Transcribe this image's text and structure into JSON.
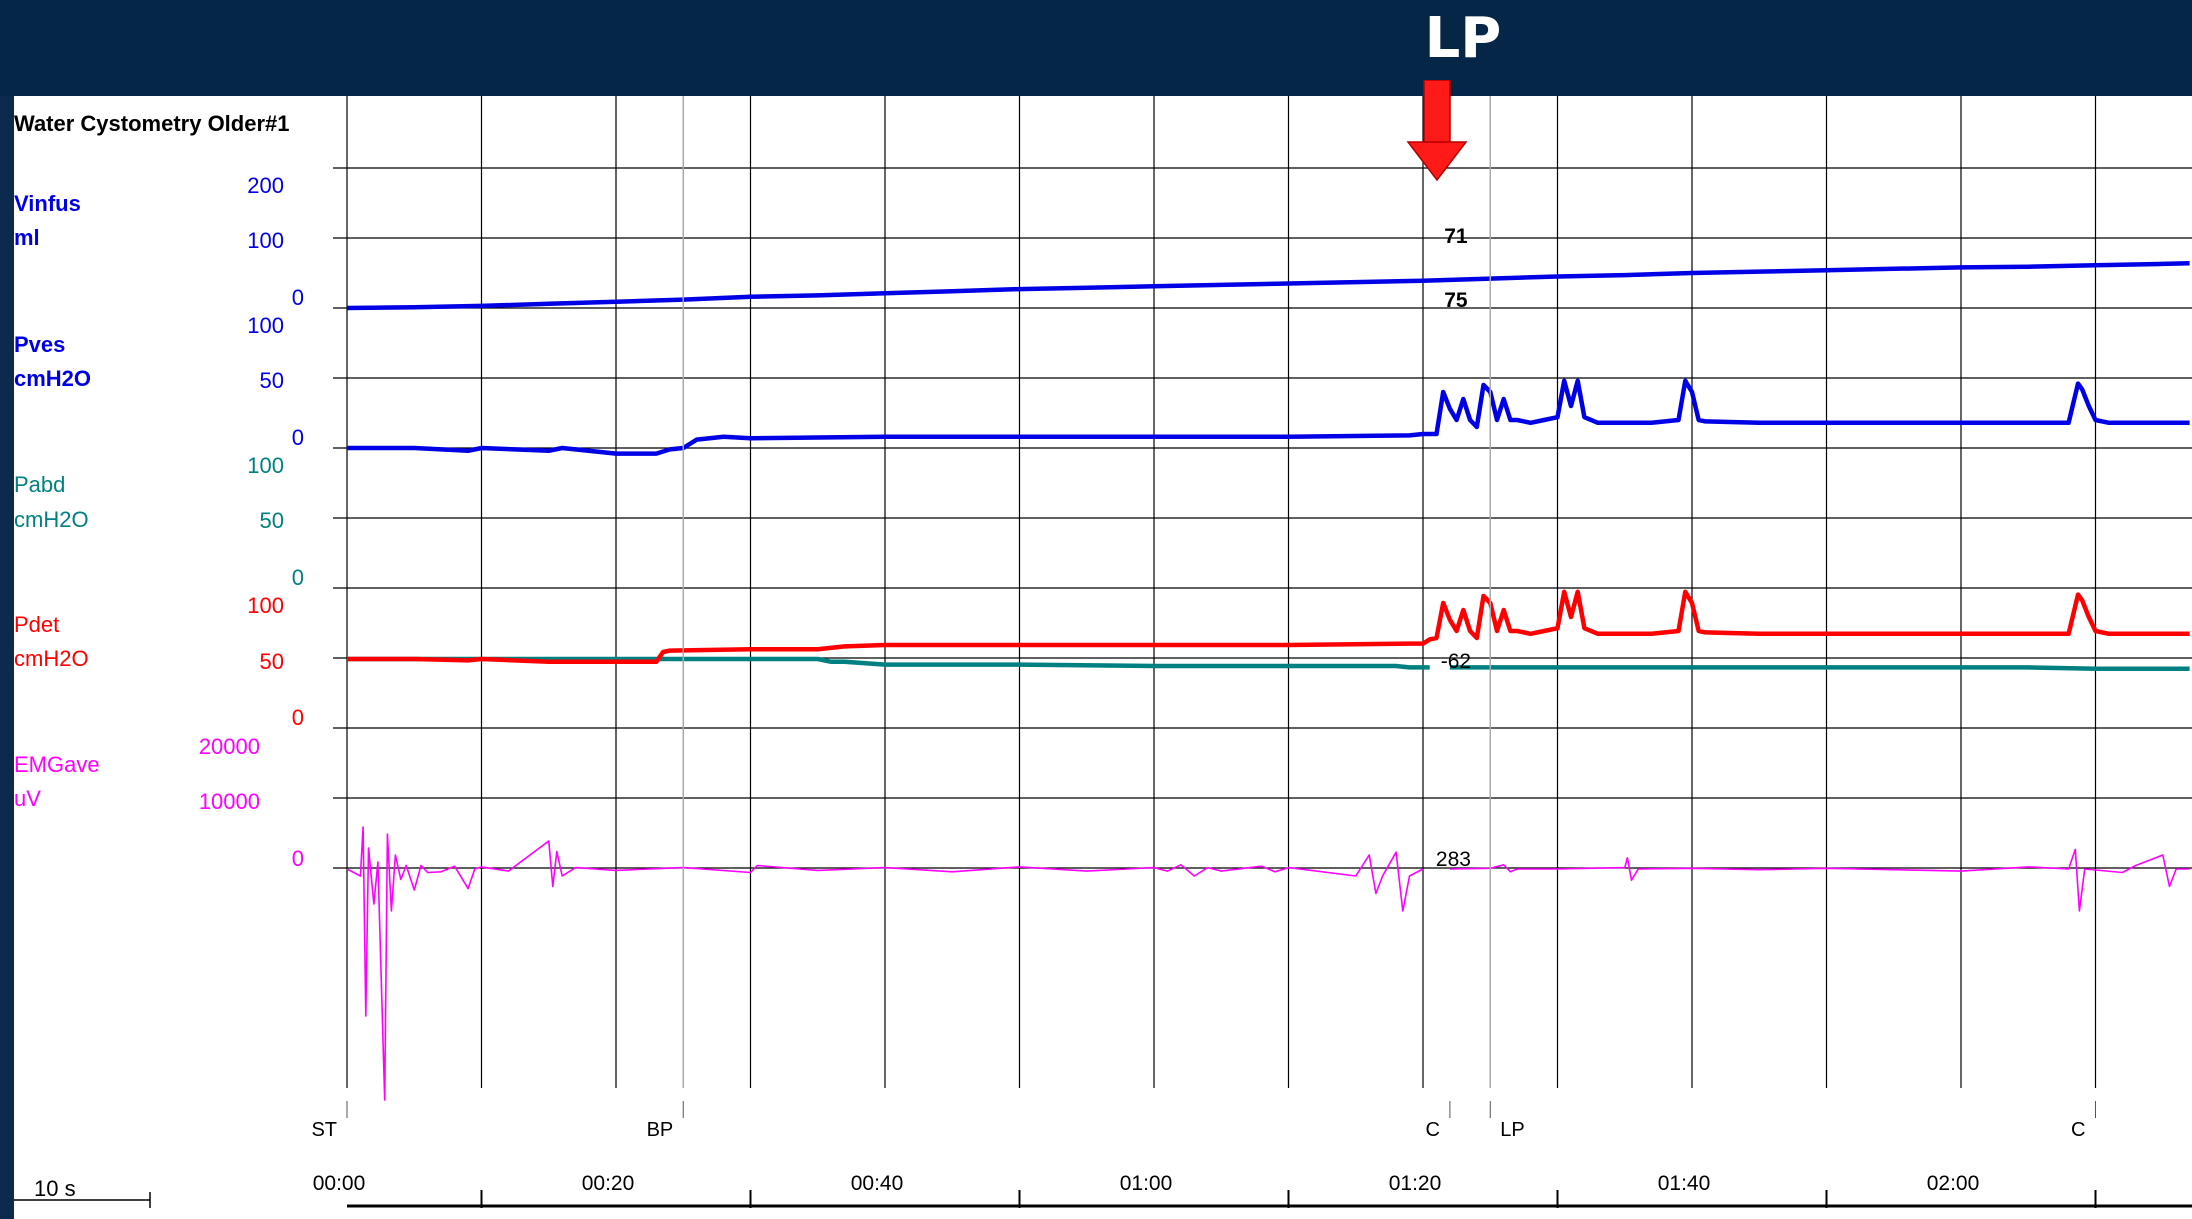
{
  "header": {
    "marker_title": "LP"
  },
  "chart_data": {
    "type": "line",
    "title": "Water Cystometry Older#1",
    "channels": [
      {
        "key": "vinfus",
        "name": "Vinfus",
        "unit": "ml",
        "color": "#0000e6",
        "ticks": [
          "200",
          "100",
          "0"
        ],
        "range": [
          0,
          200
        ]
      },
      {
        "key": "pves",
        "name": "Pves",
        "unit": "cmH2O",
        "color": "#0000e6",
        "ticks": [
          "100",
          "50",
          "0"
        ],
        "range": [
          0,
          100
        ]
      },
      {
        "key": "pabd",
        "name": "Pabd",
        "unit": "cmH2O",
        "color": "#008080",
        "ticks": [
          "100",
          "50",
          "0"
        ],
        "range": [
          0,
          100
        ]
      },
      {
        "key": "pdet",
        "name": "Pdet",
        "unit": "cmH2O",
        "color": "#ff0000",
        "ticks": [
          "100",
          "50",
          "0"
        ],
        "range": [
          0,
          100
        ]
      },
      {
        "key": "emg",
        "name": "EMGave",
        "unit": "uV",
        "color": "#ff00ff",
        "ticks": [
          "20000",
          "10000",
          "0"
        ],
        "range": [
          0,
          20000
        ]
      }
    ],
    "x_ticks": [
      "00:00",
      "00:20",
      "00:40",
      "01:00",
      "01:20",
      "01:40",
      "02:00"
    ],
    "x_range_s": [
      0,
      137
    ],
    "scale_bar": "10 s",
    "event_markers": [
      {
        "t": 0,
        "label": "ST"
      },
      {
        "t": 25,
        "label": "BP"
      },
      {
        "t": 82,
        "label": "C"
      },
      {
        "t": 85,
        "label": "LP"
      },
      {
        "t": 130,
        "label": "C"
      }
    ],
    "cursor_values": [
      {
        "channel": "vinfus",
        "text": "71"
      },
      {
        "channel": "pves",
        "text": "75"
      },
      {
        "channel": "pabd",
        "text": "-62"
      },
      {
        "channel": "emg",
        "text": "283"
      }
    ],
    "series": [
      {
        "name": "Vinfus",
        "points": [
          [
            0,
            0
          ],
          [
            5,
            1
          ],
          [
            10,
            3
          ],
          [
            15,
            6
          ],
          [
            20,
            9
          ],
          [
            25,
            12
          ],
          [
            30,
            16
          ],
          [
            35,
            18
          ],
          [
            40,
            21
          ],
          [
            45,
            24
          ],
          [
            50,
            27
          ],
          [
            55,
            29
          ],
          [
            60,
            31
          ],
          [
            65,
            33
          ],
          [
            70,
            35
          ],
          [
            75,
            37
          ],
          [
            80,
            39
          ],
          [
            85,
            42
          ],
          [
            90,
            45
          ],
          [
            95,
            47
          ],
          [
            100,
            50
          ],
          [
            105,
            52
          ],
          [
            110,
            54
          ],
          [
            115,
            56
          ],
          [
            120,
            58
          ],
          [
            125,
            59
          ],
          [
            130,
            61
          ],
          [
            135,
            63
          ],
          [
            137,
            64
          ]
        ]
      },
      {
        "name": "Pves",
        "points": [
          [
            0,
            0
          ],
          [
            5,
            0
          ],
          [
            9,
            -2
          ],
          [
            10,
            0
          ],
          [
            15,
            -2
          ],
          [
            16,
            0
          ],
          [
            20,
            -4
          ],
          [
            23,
            -4
          ],
          [
            24,
            -1
          ],
          [
            25,
            0
          ],
          [
            26,
            6
          ],
          [
            28,
            8
          ],
          [
            30,
            7
          ],
          [
            40,
            8
          ],
          [
            50,
            8
          ],
          [
            60,
            8
          ],
          [
            70,
            8
          ],
          [
            79,
            9
          ],
          [
            80,
            10
          ],
          [
            81,
            10
          ],
          [
            81.5,
            40
          ],
          [
            82,
            28
          ],
          [
            82.5,
            20
          ],
          [
            83,
            35
          ],
          [
            83.5,
            20
          ],
          [
            84,
            15
          ],
          [
            84.5,
            45
          ],
          [
            85,
            40
          ],
          [
            85.5,
            20
          ],
          [
            86,
            35
          ],
          [
            86.5,
            20
          ],
          [
            87,
            20
          ],
          [
            88,
            18
          ],
          [
            89,
            20
          ],
          [
            90,
            22
          ],
          [
            90.5,
            48
          ],
          [
            91,
            30
          ],
          [
            91.5,
            48
          ],
          [
            92,
            22
          ],
          [
            93,
            18
          ],
          [
            95,
            18
          ],
          [
            97,
            18
          ],
          [
            98,
            19
          ],
          [
            99,
            20
          ],
          [
            99.5,
            48
          ],
          [
            100,
            40
          ],
          [
            100.5,
            20
          ],
          [
            101,
            19
          ],
          [
            105,
            18
          ],
          [
            110,
            18
          ],
          [
            115,
            18
          ],
          [
            120,
            18
          ],
          [
            125,
            18
          ],
          [
            128,
            18
          ],
          [
            128.7,
            46
          ],
          [
            129,
            42
          ],
          [
            129.5,
            30
          ],
          [
            130,
            20
          ],
          [
            131,
            18
          ],
          [
            135,
            18
          ],
          [
            137,
            18
          ]
        ]
      },
      {
        "name": "Pabd",
        "points": [
          [
            0,
            0
          ],
          [
            10,
            0
          ],
          [
            20,
            0
          ],
          [
            24,
            0
          ],
          [
            25,
            0
          ],
          [
            30,
            0
          ],
          [
            35,
            0
          ],
          [
            36,
            -2
          ],
          [
            37,
            -2
          ],
          [
            40,
            -4
          ],
          [
            50,
            -4
          ],
          [
            60,
            -5
          ],
          [
            70,
            -5
          ],
          [
            78,
            -5
          ],
          [
            79,
            -6
          ],
          [
            80.5,
            -6
          ],
          [
            null,
            null
          ],
          [
            82,
            -6
          ],
          [
            90,
            -6
          ],
          [
            100,
            -6
          ],
          [
            110,
            -6
          ],
          [
            120,
            -6
          ],
          [
            125,
            -6
          ],
          [
            130,
            -7
          ],
          [
            137,
            -7
          ]
        ]
      },
      {
        "name": "Pdet",
        "points": [
          [
            0,
            0
          ],
          [
            5,
            0
          ],
          [
            9,
            -1
          ],
          [
            10,
            0
          ],
          [
            15,
            -2
          ],
          [
            20,
            -2
          ],
          [
            22,
            -2
          ],
          [
            23,
            -2
          ],
          [
            23.5,
            5
          ],
          [
            24,
            6
          ],
          [
            30,
            7
          ],
          [
            35,
            7
          ],
          [
            37,
            9
          ],
          [
            40,
            10
          ],
          [
            50,
            10
          ],
          [
            60,
            10
          ],
          [
            70,
            10
          ],
          [
            79,
            11
          ],
          [
            80,
            11
          ],
          [
            80.5,
            14
          ],
          [
            81,
            15
          ],
          [
            81.5,
            40
          ],
          [
            82,
            28
          ],
          [
            82.5,
            20
          ],
          [
            83,
            35
          ],
          [
            83.5,
            20
          ],
          [
            84,
            15
          ],
          [
            84.5,
            45
          ],
          [
            85,
            40
          ],
          [
            85.5,
            20
          ],
          [
            86,
            35
          ],
          [
            86.5,
            20
          ],
          [
            87,
            20
          ],
          [
            88,
            18
          ],
          [
            89,
            20
          ],
          [
            90,
            22
          ],
          [
            90.5,
            48
          ],
          [
            91,
            30
          ],
          [
            91.5,
            48
          ],
          [
            92,
            22
          ],
          [
            93,
            18
          ],
          [
            95,
            18
          ],
          [
            97,
            18
          ],
          [
            98,
            19
          ],
          [
            99,
            20
          ],
          [
            99.5,
            48
          ],
          [
            100,
            40
          ],
          [
            100.5,
            20
          ],
          [
            101,
            19
          ],
          [
            105,
            18
          ],
          [
            110,
            18
          ],
          [
            115,
            18
          ],
          [
            120,
            18
          ],
          [
            125,
            18
          ],
          [
            128,
            18
          ],
          [
            128.7,
            46
          ],
          [
            129,
            42
          ],
          [
            129.5,
            30
          ],
          [
            130,
            20
          ],
          [
            131,
            18
          ],
          [
            135,
            18
          ],
          [
            137,
            18
          ]
        ]
      },
      {
        "name": "EMGave",
        "points": [
          [
            0,
            0
          ],
          [
            1,
            -1000
          ],
          [
            1.2,
            6000
          ],
          [
            1.4,
            -21000
          ],
          [
            1.6,
            3000
          ],
          [
            2,
            -5000
          ],
          [
            2.3,
            1000
          ],
          [
            2.8,
            -33000
          ],
          [
            3,
            5000
          ],
          [
            3.3,
            -6000
          ],
          [
            3.6,
            2000
          ],
          [
            4,
            -1500
          ],
          [
            4.4,
            500
          ],
          [
            5,
            -3000
          ],
          [
            5.5,
            500
          ],
          [
            6,
            -500
          ],
          [
            7,
            -400
          ],
          [
            8,
            400
          ],
          [
            9,
            -2800
          ],
          [
            9.5,
            0
          ],
          [
            10,
            300
          ],
          [
            12,
            -300
          ],
          [
            15,
            4000
          ],
          [
            15.3,
            -2500
          ],
          [
            15.6,
            2500
          ],
          [
            16,
            -1000
          ],
          [
            17,
            200
          ],
          [
            20,
            -200
          ],
          [
            25,
            200
          ],
          [
            30,
            -500
          ],
          [
            30.5,
            500
          ],
          [
            35,
            -200
          ],
          [
            40,
            200
          ],
          [
            45,
            -400
          ],
          [
            50,
            300
          ],
          [
            55,
            -300
          ],
          [
            60,
            200
          ],
          [
            61,
            -300
          ],
          [
            62,
            600
          ],
          [
            63,
            -1000
          ],
          [
            64,
            200
          ],
          [
            65,
            -300
          ],
          [
            68,
            400
          ],
          [
            69,
            -400
          ],
          [
            70,
            200
          ],
          [
            75,
            -1000
          ],
          [
            76,
            2000
          ],
          [
            76.5,
            -3500
          ],
          [
            77,
            -1000
          ],
          [
            78,
            2400
          ],
          [
            78.5,
            -6000
          ],
          [
            79,
            -1000
          ],
          [
            80,
            0
          ],
          [
            null,
            null
          ],
          [
            82,
            0
          ],
          [
            85,
            100
          ],
          [
            86,
            600
          ],
          [
            86.5,
            -400
          ],
          [
            87,
            0
          ],
          [
            90,
            0
          ],
          [
            95,
            200
          ],
          [
            95.2,
            1600
          ],
          [
            95.5,
            -1600
          ],
          [
            96,
            0
          ],
          [
            100,
            100
          ],
          [
            105,
            -100
          ],
          [
            110,
            100
          ],
          [
            115,
            -100
          ],
          [
            120,
            -300
          ],
          [
            125,
            300
          ],
          [
            128,
            0
          ],
          [
            128.5,
            2800
          ],
          [
            128.8,
            -6000
          ],
          [
            129.2,
            0
          ],
          [
            132,
            -500
          ],
          [
            133,
            500
          ],
          [
            135,
            2000
          ],
          [
            135.5,
            -2500
          ],
          [
            136,
            0
          ],
          [
            137,
            0
          ]
        ]
      }
    ]
  }
}
